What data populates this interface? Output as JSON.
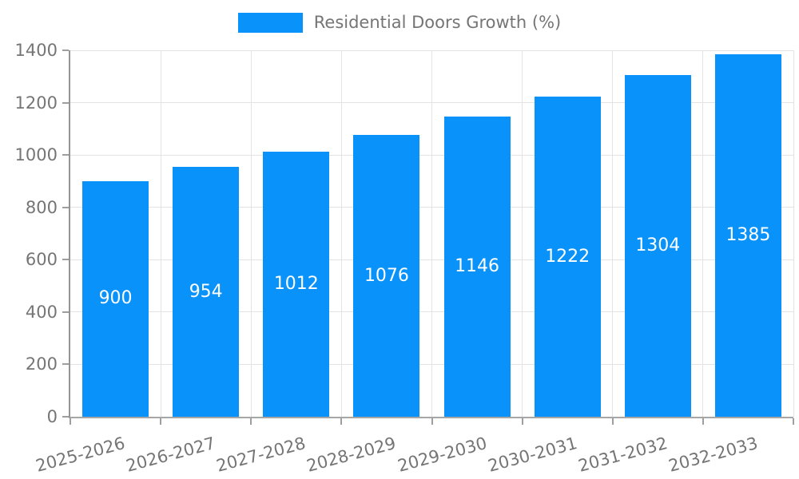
{
  "legend": {
    "label": "Residential Doors Growth (%)"
  },
  "chart_data": {
    "type": "bar",
    "title": "Residential Doors Growth (%)",
    "categories": [
      "2025-2026",
      "2026-2027",
      "2027-2028",
      "2028-2029",
      "2029-2030",
      "2030-2031",
      "2031-2032",
      "2032-2033"
    ],
    "values": [
      900,
      954,
      1012,
      1076,
      1146,
      1222,
      1304,
      1385
    ],
    "xlabel": "",
    "ylabel": "",
    "ylim": [
      0,
      1400
    ],
    "yticks": [
      0,
      200,
      400,
      600,
      800,
      1000,
      1200,
      1400
    ],
    "grid": true,
    "legend_position": "top center",
    "value_labels": "inside bar, vertically centered, white",
    "x_label_rotation_deg": -15,
    "colors": {
      "bar": "#0892fa",
      "value_label": "#ffffff",
      "axis_text": "#757575",
      "gridline": "#e3e3e3",
      "axis_line": "#9e9e9e",
      "background": "#ffffff"
    }
  }
}
